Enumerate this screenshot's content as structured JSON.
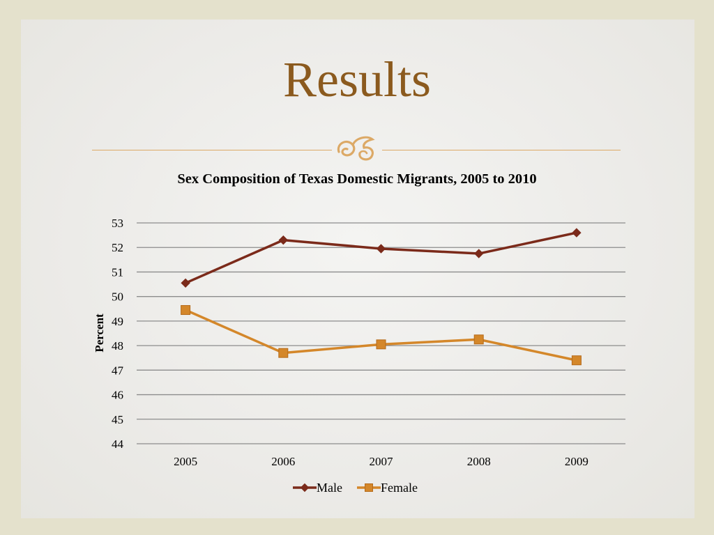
{
  "slide": {
    "title": "Results",
    "ornament_icon": "swirl-ornament-icon"
  },
  "colors": {
    "background": "#e4e1cc",
    "title": "#8b5a1e",
    "divider": "#dca966",
    "male": "#7b2a1a",
    "female": "#d4872a",
    "gridline": "#8c8c8c"
  },
  "chart_data": {
    "type": "line",
    "title": "Sex Composition of Texas Domestic Migrants, 2005 to 2010",
    "xlabel": "",
    "ylabel": "Percent",
    "categories": [
      "2005",
      "2006",
      "2007",
      "2008",
      "2009"
    ],
    "ylim": [
      44,
      53
    ],
    "yticks": [
      44,
      45,
      46,
      47,
      48,
      49,
      50,
      51,
      52,
      53
    ],
    "grid": true,
    "legend_position": "bottom",
    "series": [
      {
        "name": "Male",
        "marker": "diamond",
        "color": "#7b2a1a",
        "values": [
          50.55,
          52.3,
          51.95,
          51.75,
          52.6
        ]
      },
      {
        "name": "Female",
        "marker": "square",
        "color": "#d4872a",
        "values": [
          49.45,
          47.7,
          48.05,
          48.25,
          47.4
        ]
      }
    ]
  }
}
